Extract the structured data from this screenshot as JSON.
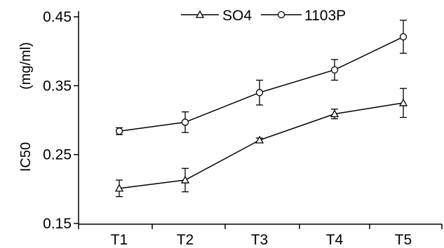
{
  "chart_data": {
    "type": "line",
    "title": "",
    "xlabel": "",
    "ylabel": "IC50",
    "ylabel_unit": "(mg/ml)",
    "categories": [
      "T1",
      "T2",
      "T3",
      "T4",
      "T5"
    ],
    "ylim": [
      0.15,
      0.45
    ],
    "yticks": [
      0.15,
      0.25,
      0.35,
      0.45
    ],
    "ytick_labels": [
      "0.15",
      "0.25",
      "0.35",
      "0.45"
    ],
    "grid": false,
    "legend_position": "top",
    "series": [
      {
        "name": "SO4",
        "marker": "triangle",
        "values": [
          0.201,
          0.213,
          0.271,
          0.309,
          0.325
        ],
        "errors": [
          0.012,
          0.017,
          0.003,
          0.007,
          0.021
        ]
      },
      {
        "name": "1103P",
        "marker": "circle",
        "values": [
          0.284,
          0.297,
          0.34,
          0.373,
          0.421
        ],
        "errors": [
          0.005,
          0.015,
          0.018,
          0.015,
          0.024
        ]
      }
    ]
  }
}
